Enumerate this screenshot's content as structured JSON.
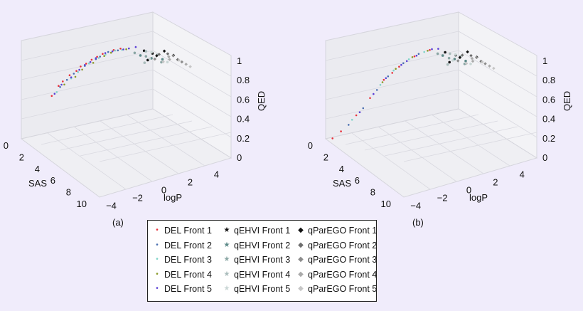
{
  "chart_data": [
    {
      "type": "scatter3d",
      "panel_label": "(a)",
      "xlabel": "SAS",
      "ylabel": "logP",
      "zlabel": "QED",
      "xlim": [
        0,
        10
      ],
      "ylim": [
        -5,
        5
      ],
      "zlim": [
        0,
        1
      ],
      "xticks": [
        "0",
        "2",
        "4",
        "6",
        "8",
        "10"
      ],
      "yticks": [
        "−4",
        "−2",
        "0",
        "2",
        "4"
      ],
      "zticks": [
        "0",
        "0.2",
        "0.4",
        "0.6",
        "0.8",
        "1"
      ],
      "grid": true,
      "series_points": [
        {
          "name": "DEL Front 1",
          "points": [
            [
              1.4,
              -3.0,
              0.55
            ],
            [
              1.8,
              -2.4,
              0.66
            ],
            [
              2.2,
              -1.8,
              0.75
            ],
            [
              2.6,
              -1.2,
              0.82
            ],
            [
              3.0,
              -0.6,
              0.88
            ],
            [
              3.4,
              0.0,
              0.92
            ],
            [
              1.2,
              -3.4,
              0.45
            ],
            [
              2.0,
              -2.0,
              0.7
            ],
            [
              2.8,
              -0.9,
              0.85
            ],
            [
              3.6,
              0.4,
              0.93
            ],
            [
              1.6,
              -2.8,
              0.6
            ],
            [
              2.4,
              -1.5,
              0.78
            ]
          ]
        },
        {
          "name": "DEL Front 2",
          "points": [
            [
              1.8,
              -2.6,
              0.62
            ],
            [
              2.4,
              -1.6,
              0.76
            ],
            [
              3.0,
              -0.8,
              0.86
            ],
            [
              3.6,
              0.2,
              0.92
            ],
            [
              2.0,
              -2.2,
              0.68
            ],
            [
              2.8,
              -1.0,
              0.83
            ],
            [
              3.2,
              -0.3,
              0.9
            ],
            [
              1.6,
              -3.0,
              0.55
            ]
          ]
        },
        {
          "name": "DEL Front 3",
          "points": [
            [
              2.0,
              -2.4,
              0.64
            ],
            [
              2.6,
              -1.4,
              0.79
            ],
            [
              3.2,
              -0.5,
              0.88
            ],
            [
              3.8,
              0.4,
              0.93
            ],
            [
              2.2,
              -2.0,
              0.7
            ],
            [
              3.0,
              -0.9,
              0.85
            ],
            [
              1.5,
              -3.2,
              0.5
            ],
            [
              3.4,
              0.1,
              0.91
            ]
          ]
        },
        {
          "name": "DEL Front 4",
          "points": [
            [
              2.2,
              -2.2,
              0.66
            ],
            [
              2.8,
              -1.2,
              0.8
            ],
            [
              3.4,
              -0.2,
              0.9
            ],
            [
              4.0,
              0.6,
              0.94
            ],
            [
              2.4,
              -1.8,
              0.73
            ],
            [
              3.2,
              -0.6,
              0.87
            ],
            [
              1.8,
              -2.8,
              0.58
            ]
          ]
        },
        {
          "name": "DEL Front 5",
          "points": [
            [
              1.6,
              -2.9,
              0.57
            ],
            [
              2.2,
              -1.9,
              0.72
            ],
            [
              2.8,
              -1.0,
              0.84
            ],
            [
              3.4,
              -0.1,
              0.91
            ],
            [
              4.0,
              0.8,
              0.94
            ],
            [
              2.0,
              -2.4,
              0.65
            ],
            [
              2.6,
              -1.3,
              0.8
            ],
            [
              3.0,
              -0.4,
              0.88
            ],
            [
              3.8,
              0.5,
              0.93
            ],
            [
              1.4,
              -3.3,
              0.48
            ],
            [
              4.2,
              1.2,
              0.95
            ],
            [
              2.4,
              -1.6,
              0.77
            ]
          ]
        },
        {
          "name": "qEHVI Front 1",
          "points": [
            [
              4.6,
              1.6,
              0.92
            ],
            [
              5.0,
              2.0,
              0.9
            ],
            [
              5.4,
              1.4,
              0.88
            ]
          ]
        },
        {
          "name": "qEHVI Front 2",
          "points": [
            [
              4.8,
              1.2,
              0.9
            ],
            [
              5.2,
              1.8,
              0.87
            ],
            [
              5.6,
              2.4,
              0.86
            ]
          ]
        },
        {
          "name": "qEHVI Front 3",
          "points": [
            [
              4.4,
              1.0,
              0.91
            ],
            [
              5.0,
              1.5,
              0.89
            ],
            [
              5.8,
              2.2,
              0.85
            ]
          ]
        },
        {
          "name": "qEHVI Front 4",
          "points": [
            [
              4.5,
              1.8,
              0.9
            ],
            [
              5.1,
              2.3,
              0.88
            ],
            [
              5.5,
              1.1,
              0.87
            ]
          ]
        },
        {
          "name": "qEHVI Front 5",
          "points": [
            [
              4.7,
              2.1,
              0.89
            ],
            [
              5.3,
              1.6,
              0.88
            ],
            [
              5.9,
              2.6,
              0.84
            ]
          ]
        },
        {
          "name": "qParEGO Front 1",
          "points": [
            [
              5.5,
              2.6,
              0.93
            ],
            [
              6.0,
              3.0,
              0.9
            ],
            [
              5.2,
              2.2,
              0.88
            ]
          ]
        },
        {
          "name": "qParEGO Front 2",
          "points": [
            [
              5.6,
              2.8,
              0.9
            ],
            [
              6.2,
              3.2,
              0.86
            ],
            [
              5.0,
              2.5,
              0.87
            ]
          ]
        },
        {
          "name": "qParEGO Front 3",
          "points": [
            [
              5.8,
              3.1,
              0.88
            ],
            [
              6.4,
              3.4,
              0.84
            ],
            [
              5.3,
              2.0,
              0.86
            ]
          ]
        },
        {
          "name": "qParEGO Front 4",
          "points": [
            [
              6.0,
              2.7,
              0.87
            ],
            [
              6.6,
              3.6,
              0.82
            ],
            [
              5.4,
              3.0,
              0.85
            ]
          ]
        },
        {
          "name": "qParEGO Front 5",
          "points": [
            [
              6.2,
              3.3,
              0.85
            ],
            [
              6.8,
              3.8,
              0.8
            ],
            [
              5.7,
              2.4,
              0.84
            ]
          ]
        }
      ]
    },
    {
      "type": "scatter3d",
      "panel_label": "(b)",
      "xlabel": "SAS",
      "ylabel": "logP",
      "zlabel": "QED",
      "xlim": [
        0,
        10
      ],
      "ylim": [
        -5,
        5
      ],
      "zlim": [
        0,
        1
      ],
      "xticks": [
        "0",
        "2",
        "4",
        "6",
        "8",
        "10"
      ],
      "yticks": [
        "−4",
        "−2",
        "0",
        "2",
        "4"
      ],
      "zticks": [
        "0",
        "0.2",
        "0.4",
        "0.6",
        "0.8",
        "1"
      ],
      "grid": true,
      "series_points": [
        {
          "name": "DEL Front 1",
          "points": [
            [
              2.0,
              -1.8,
              0.6
            ],
            [
              2.6,
              -1.0,
              0.74
            ],
            [
              3.2,
              -0.2,
              0.85
            ],
            [
              3.8,
              0.6,
              0.92
            ],
            [
              1.6,
              -2.6,
              0.42
            ],
            [
              1.2,
              -3.4,
              0.25
            ],
            [
              0.6,
              -4.2,
              0.08
            ],
            [
              0.2,
              -4.6,
              0.0
            ],
            [
              2.4,
              -1.4,
              0.68
            ]
          ]
        },
        {
          "name": "DEL Front 2",
          "points": [
            [
              2.2,
              -1.6,
              0.64
            ],
            [
              2.8,
              -0.8,
              0.78
            ],
            [
              3.4,
              0.0,
              0.88
            ],
            [
              1.8,
              -2.2,
              0.5
            ],
            [
              1.4,
              -3.0,
              0.32
            ],
            [
              0.9,
              -3.8,
              0.15
            ]
          ]
        },
        {
          "name": "DEL Front 3",
          "points": [
            [
              2.4,
              -1.3,
              0.7
            ],
            [
              3.0,
              -0.5,
              0.82
            ],
            [
              3.6,
              0.3,
              0.9
            ],
            [
              1.9,
              -2.0,
              0.55
            ],
            [
              1.0,
              -3.6,
              0.2
            ]
          ]
        },
        {
          "name": "DEL Front 4",
          "points": [
            [
              2.5,
              -1.2,
              0.72
            ],
            [
              3.1,
              -0.3,
              0.84
            ],
            [
              3.7,
              0.5,
              0.91
            ],
            [
              2.0,
              -1.9,
              0.58
            ]
          ]
        },
        {
          "name": "DEL Front 5",
          "points": [
            [
              2.1,
              -1.7,
              0.62
            ],
            [
              2.7,
              -0.9,
              0.76
            ],
            [
              3.3,
              -0.1,
              0.86
            ],
            [
              3.9,
              0.7,
              0.93
            ],
            [
              1.7,
              -2.4,
              0.46
            ],
            [
              1.3,
              -3.2,
              0.28
            ],
            [
              4.2,
              1.0,
              0.94
            ],
            [
              2.9,
              -0.6,
              0.8
            ]
          ]
        },
        {
          "name": "qEHVI Front 1",
          "points": [
            [
              4.4,
              1.4,
              0.9
            ],
            [
              4.9,
              1.9,
              0.88
            ],
            [
              5.3,
              1.2,
              0.86
            ]
          ]
        },
        {
          "name": "qEHVI Front 2",
          "points": [
            [
              4.6,
              1.1,
              0.89
            ],
            [
              5.1,
              1.7,
              0.86
            ],
            [
              5.5,
              2.3,
              0.84
            ]
          ]
        },
        {
          "name": "qEHVI Front 3",
          "points": [
            [
              4.3,
              0.9,
              0.9
            ],
            [
              4.9,
              1.4,
              0.87
            ],
            [
              5.7,
              2.1,
              0.83
            ]
          ]
        },
        {
          "name": "qEHVI Front 4",
          "points": [
            [
              4.5,
              1.7,
              0.88
            ],
            [
              5.0,
              2.2,
              0.86
            ],
            [
              5.4,
              1.0,
              0.85
            ]
          ]
        },
        {
          "name": "qEHVI Front 5",
          "points": [
            [
              4.7,
              2.0,
              0.87
            ],
            [
              5.2,
              1.5,
              0.86
            ],
            [
              5.8,
              2.5,
              0.82
            ]
          ]
        },
        {
          "name": "qParEGO Front 1",
          "points": [
            [
              5.4,
              2.5,
              0.92
            ],
            [
              5.9,
              2.9,
              0.88
            ],
            [
              5.1,
              2.1,
              0.86
            ]
          ]
        },
        {
          "name": "qParEGO Front 2",
          "points": [
            [
              5.5,
              2.7,
              0.88
            ],
            [
              6.1,
              3.1,
              0.84
            ],
            [
              4.9,
              2.4,
              0.86
            ]
          ]
        },
        {
          "name": "qParEGO Front 3",
          "points": [
            [
              5.7,
              3.0,
              0.86
            ],
            [
              6.3,
              3.3,
              0.82
            ],
            [
              5.2,
              1.9,
              0.84
            ]
          ]
        },
        {
          "name": "qParEGO Front 4",
          "points": [
            [
              5.9,
              2.6,
              0.85
            ],
            [
              6.5,
              3.5,
              0.8
            ],
            [
              5.3,
              2.9,
              0.83
            ]
          ]
        },
        {
          "name": "qParEGO Front 5",
          "points": [
            [
              6.1,
              3.2,
              0.83
            ],
            [
              6.7,
              3.7,
              0.78
            ],
            [
              5.6,
              2.3,
              0.82
            ]
          ]
        }
      ]
    }
  ],
  "legend": {
    "placement": "bottom-center",
    "items": [
      {
        "label": "DEL Front 1",
        "marker": "•",
        "color": "#e8323c"
      },
      {
        "label": "qEHVI Front 1",
        "marker": "★",
        "color": "#111111"
      },
      {
        "label": "qParEGO Front 1",
        "marker": "◆",
        "color": "#111111"
      },
      {
        "label": "DEL Front 2",
        "marker": "•",
        "color": "#4a6fb0"
      },
      {
        "label": "qEHVI Front 2",
        "marker": "★",
        "color": "#5d8a88"
      },
      {
        "label": "qParEGO Front 2",
        "marker": "◆",
        "color": "#6e6e6e"
      },
      {
        "label": "DEL Front 3",
        "marker": "•",
        "color": "#7fd4c8"
      },
      {
        "label": "qEHVI Front 3",
        "marker": "★",
        "color": "#8aa6a4"
      },
      {
        "label": "qParEGO Front 3",
        "marker": "◆",
        "color": "#8c8c8c"
      },
      {
        "label": "DEL Front 4",
        "marker": "•",
        "color": "#8a9a2a"
      },
      {
        "label": "qEHVI Front 4",
        "marker": "★",
        "color": "#a9bcbb"
      },
      {
        "label": "qParEGO Front 4",
        "marker": "◆",
        "color": "#aaaaaa"
      },
      {
        "label": "DEL Front 5",
        "marker": "•",
        "color": "#5a3fd6"
      },
      {
        "label": "qEHVI Front 5",
        "marker": "★",
        "color": "#c9d6d5"
      },
      {
        "label": "qParEGO Front 5",
        "marker": "◆",
        "color": "#c6c6c6"
      }
    ]
  }
}
